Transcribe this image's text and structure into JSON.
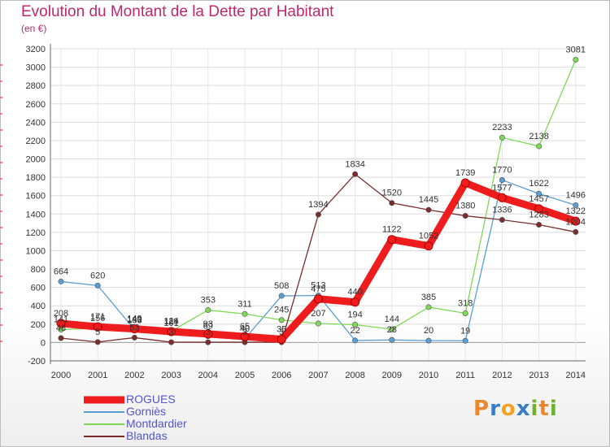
{
  "title": "Evolution du Montant de la Dette par Habitant",
  "subtitle": "(en €)",
  "logo": {
    "letters": [
      "P",
      "r",
      "o",
      "x",
      "i",
      "t",
      "i"
    ],
    "colors": [
      "#e9892f",
      "#3b7dc4",
      "#f0a323",
      "#3b7dc4",
      "#6fb12d",
      "#e9892f",
      "#6fb12d"
    ]
  },
  "chart_data": {
    "type": "line",
    "title": "Evolution du Montant de la Dette par Habitant",
    "ylabel": "(en €)",
    "x": [
      "2000",
      "2001",
      "2002",
      "2003",
      "2004",
      "2005",
      "2006",
      "2007",
      "2008",
      "2009",
      "2010",
      "2011",
      "2012",
      "2013",
      "2014"
    ],
    "ylim": [
      -200,
      3200
    ],
    "yticks": [
      "-200",
      "0",
      "200",
      "400",
      "600",
      "800",
      "1000",
      "1200",
      "1400",
      "1600",
      "1800",
      "2000",
      "2200",
      "2400",
      "2600",
      "2800",
      "3000",
      "3200"
    ],
    "grid": true,
    "legend_position": "bottom-left",
    "series": [
      {
        "name": "ROGUES",
        "color": "#ee1c1c",
        "values": [
          208,
          171,
          149,
          119,
          93,
          65,
          35,
          475,
          440,
          1122,
          1052,
          1739,
          1577,
          1457,
          1322
        ],
        "labels": [
          "208",
          "171",
          "149",
          "119",
          "93",
          "65",
          "35",
          "475",
          "440",
          "1122",
          "1052",
          "1739",
          "1577",
          "1457",
          "1322"
        ]
      },
      {
        "name": "Gorniès",
        "color": "#5a9fd4",
        "values": [
          664,
          620,
          140,
          101,
          69,
          40,
          508,
          513,
          22,
          28,
          20,
          19,
          1770,
          1622,
          1496
        ],
        "labels": [
          "664",
          "620",
          "140",
          "101",
          "69",
          "40",
          "508",
          "513",
          "22",
          "28",
          "20",
          "19",
          "1770",
          "1622",
          "1496"
        ]
      },
      {
        "name": "Montdardier",
        "color": "#7ed957",
        "values": [
          141,
          156,
          133,
          124,
          353,
          311,
          245,
          207,
          194,
          144,
          385,
          318,
          2233,
          2138,
          3081
        ],
        "labels": [
          "141",
          "156",
          "133",
          "124",
          "353",
          "311",
          "245",
          "207",
          "194",
          "144",
          "385",
          "318",
          "2233",
          "2138",
          "3081"
        ]
      },
      {
        "name": "Blandas",
        "color": "#7b2d2d",
        "values": [
          48,
          5,
          53,
          3,
          3,
          3,
          3,
          1394,
          1834,
          1520,
          1445,
          1380,
          1336,
          1283,
          1204
        ],
        "labels": [
          "48",
          "5",
          "53",
          "3",
          "3",
          "3",
          "3",
          "1394",
          "1834",
          "1520",
          "1445",
          "1380",
          "1336",
          "1283",
          "1204"
        ]
      }
    ]
  }
}
